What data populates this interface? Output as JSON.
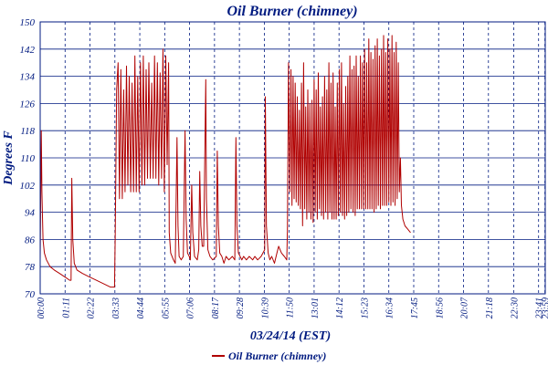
{
  "chart_data": {
    "type": "line",
    "title": "Oil Burner (chimney)",
    "xlabel": "03/24/14 (EST)",
    "ylabel": "Degrees F",
    "ylim": [
      70,
      150
    ],
    "xlim": [
      0,
      1440
    ],
    "y_ticks": [
      70,
      78,
      86,
      94,
      102,
      110,
      118,
      126,
      134,
      142,
      150
    ],
    "x_ticks": [
      {
        "label": "00:00",
        "t": 0
      },
      {
        "label": "01:11",
        "t": 71
      },
      {
        "label": "02:22",
        "t": 142
      },
      {
        "label": "03:33",
        "t": 213
      },
      {
        "label": "04:44",
        "t": 284
      },
      {
        "label": "05:55",
        "t": 355
      },
      {
        "label": "07:06",
        "t": 426
      },
      {
        "label": "08:17",
        "t": 497
      },
      {
        "label": "09:28",
        "t": 568
      },
      {
        "label": "10:39",
        "t": 639
      },
      {
        "label": "11:50",
        "t": 710
      },
      {
        "label": "13:01",
        "t": 781
      },
      {
        "label": "14:12",
        "t": 852
      },
      {
        "label": "15:23",
        "t": 923
      },
      {
        "label": "16:34",
        "t": 994
      },
      {
        "label": "17:45",
        "t": 1065
      },
      {
        "label": "18:56",
        "t": 1136
      },
      {
        "label": "20:07",
        "t": 1207
      },
      {
        "label": "21:18",
        "t": 1278
      },
      {
        "label": "22:30",
        "t": 1350
      },
      {
        "label": "23:41",
        "t": 1421
      },
      {
        "label": "23:59",
        "t": 1439
      }
    ],
    "grid": true,
    "legend_position": "bottom-center",
    "series": [
      {
        "name": "Oil Burner (chimney)",
        "color": "#b00000",
        "points": [
          [
            0,
            80
          ],
          [
            3,
            118
          ],
          [
            5,
            100
          ],
          [
            8,
            86
          ],
          [
            12,
            82
          ],
          [
            18,
            80
          ],
          [
            28,
            78
          ],
          [
            40,
            77
          ],
          [
            55,
            76
          ],
          [
            70,
            75
          ],
          [
            84,
            74
          ],
          [
            88,
            74
          ],
          [
            90,
            104
          ],
          [
            93,
            86
          ],
          [
            97,
            79
          ],
          [
            105,
            77
          ],
          [
            120,
            76
          ],
          [
            140,
            75
          ],
          [
            160,
            74
          ],
          [
            180,
            73
          ],
          [
            200,
            72
          ],
          [
            212,
            72
          ],
          [
            214,
            88
          ],
          [
            218,
            130
          ],
          [
            222,
            138
          ],
          [
            226,
            98
          ],
          [
            230,
            136
          ],
          [
            234,
            98
          ],
          [
            238,
            130
          ],
          [
            242,
            100
          ],
          [
            246,
            137
          ],
          [
            250,
            102
          ],
          [
            254,
            134
          ],
          [
            258,
            100
          ],
          [
            262,
            132
          ],
          [
            266,
            100
          ],
          [
            270,
            140
          ],
          [
            274,
            100
          ],
          [
            278,
            134
          ],
          [
            282,
            100
          ],
          [
            286,
            138
          ],
          [
            290,
            102
          ],
          [
            294,
            140
          ],
          [
            298,
            102
          ],
          [
            302,
            136
          ],
          [
            306,
            104
          ],
          [
            310,
            138
          ],
          [
            314,
            104
          ],
          [
            318,
            132
          ],
          [
            322,
            104
          ],
          [
            326,
            140
          ],
          [
            330,
            104
          ],
          [
            334,
            138
          ],
          [
            338,
            102
          ],
          [
            342,
            135
          ],
          [
            346,
            104
          ],
          [
            350,
            142
          ],
          [
            354,
            100
          ],
          [
            358,
            140
          ],
          [
            362,
            108
          ],
          [
            366,
            138
          ],
          [
            368,
            88
          ],
          [
            372,
            82
          ],
          [
            380,
            80
          ],
          [
            385,
            79
          ],
          [
            390,
            116
          ],
          [
            393,
            90
          ],
          [
            396,
            81
          ],
          [
            402,
            80
          ],
          [
            408,
            81
          ],
          [
            413,
            118
          ],
          [
            416,
            92
          ],
          [
            420,
            82
          ],
          [
            425,
            81
          ],
          [
            428,
            80
          ],
          [
            432,
            102
          ],
          [
            435,
            88
          ],
          [
            440,
            81
          ],
          [
            448,
            80
          ],
          [
            452,
            83
          ],
          [
            455,
            106
          ],
          [
            458,
            90
          ],
          [
            462,
            84
          ],
          [
            466,
            84
          ],
          [
            472,
            133
          ],
          [
            474,
            98
          ],
          [
            478,
            83
          ],
          [
            484,
            81
          ],
          [
            492,
            80
          ],
          [
            502,
            81
          ],
          [
            505,
            112
          ],
          [
            508,
            90
          ],
          [
            512,
            82
          ],
          [
            518,
            81
          ],
          [
            524,
            79
          ],
          [
            530,
            81
          ],
          [
            538,
            80
          ],
          [
            548,
            81
          ],
          [
            555,
            80
          ],
          [
            558,
            116
          ],
          [
            561,
            90
          ],
          [
            565,
            82
          ],
          [
            570,
            81
          ],
          [
            575,
            80
          ],
          [
            580,
            81
          ],
          [
            588,
            80
          ],
          [
            596,
            81
          ],
          [
            606,
            80
          ],
          [
            612,
            81
          ],
          [
            620,
            80
          ],
          [
            630,
            81
          ],
          [
            640,
            83
          ],
          [
            642,
            128
          ],
          [
            645,
            90
          ],
          [
            650,
            82
          ],
          [
            655,
            80
          ],
          [
            660,
            81
          ],
          [
            668,
            79
          ],
          [
            675,
            82
          ],
          [
            680,
            84
          ],
          [
            688,
            82
          ],
          [
            696,
            81
          ],
          [
            703,
            80
          ],
          [
            705,
            89
          ],
          [
            708,
            138
          ],
          [
            712,
            100
          ],
          [
            715,
            136
          ],
          [
            718,
            96
          ],
          [
            721,
            134
          ],
          [
            724,
            98
          ],
          [
            727,
            132
          ],
          [
            730,
            97
          ],
          [
            733,
            128
          ],
          [
            736,
            96
          ],
          [
            739,
            124
          ],
          [
            742,
            95
          ],
          [
            745,
            132
          ],
          [
            748,
            90
          ],
          [
            751,
            138
          ],
          [
            754,
            95
          ],
          [
            757,
            125
          ],
          [
            760,
            92
          ],
          [
            763,
            130
          ],
          [
            766,
            94
          ],
          [
            769,
            126
          ],
          [
            772,
            92
          ],
          [
            775,
            127
          ],
          [
            778,
            91
          ],
          [
            781,
            133
          ],
          [
            784,
            94
          ],
          [
            787,
            130
          ],
          [
            790,
            92
          ],
          [
            793,
            135
          ],
          [
            796,
            95
          ],
          [
            799,
            125
          ],
          [
            802,
            93
          ],
          [
            805,
            128
          ],
          [
            808,
            92
          ],
          [
            811,
            134
          ],
          [
            814,
            94
          ],
          [
            817,
            130
          ],
          [
            820,
            92
          ],
          [
            823,
            138
          ],
          [
            826,
            94
          ],
          [
            829,
            132
          ],
          [
            832,
            92
          ],
          [
            835,
            135
          ],
          [
            838,
            92
          ],
          [
            841,
            125
          ],
          [
            844,
            92
          ],
          [
            847,
            132
          ],
          [
            850,
            93
          ],
          [
            853,
            136
          ],
          [
            856,
            94
          ],
          [
            859,
            138
          ],
          [
            862,
            93
          ],
          [
            865,
            126
          ],
          [
            868,
            92
          ],
          [
            871,
            131
          ],
          [
            874,
            93
          ],
          [
            877,
            134
          ],
          [
            880,
            94
          ],
          [
            883,
            140
          ],
          [
            886,
            95
          ],
          [
            889,
            136
          ],
          [
            892,
            94
          ],
          [
            895,
            137
          ],
          [
            898,
            93
          ],
          [
            901,
            140
          ],
          [
            904,
            95
          ],
          [
            907,
            134
          ],
          [
            910,
            95
          ],
          [
            913,
            140
          ],
          [
            916,
            95
          ],
          [
            919,
            138
          ],
          [
            922,
            95
          ],
          [
            925,
            142
          ],
          [
            928,
            95
          ],
          [
            931,
            138
          ],
          [
            934,
            95
          ],
          [
            937,
            145
          ],
          [
            940,
            95
          ],
          [
            943,
            141
          ],
          [
            946,
            95
          ],
          [
            949,
            139
          ],
          [
            952,
            94
          ],
          [
            955,
            143
          ],
          [
            958,
            95
          ],
          [
            961,
            145
          ],
          [
            964,
            96
          ],
          [
            967,
            140
          ],
          [
            970,
            95
          ],
          [
            973,
            142
          ],
          [
            976,
            96
          ],
          [
            979,
            146
          ],
          [
            982,
            96
          ],
          [
            985,
            141
          ],
          [
            988,
            96
          ],
          [
            991,
            145
          ],
          [
            994,
            97
          ],
          [
            997,
            142
          ],
          [
            1000,
            96
          ],
          [
            1003,
            146
          ],
          [
            1006,
            97
          ],
          [
            1009,
            141
          ],
          [
            1012,
            96
          ],
          [
            1015,
            144
          ],
          [
            1018,
            98
          ],
          [
            1021,
            138
          ],
          [
            1024,
            100
          ],
          [
            1027,
            110
          ],
          [
            1030,
            96
          ],
          [
            1034,
            92
          ],
          [
            1040,
            90
          ],
          [
            1048,
            89
          ],
          [
            1056,
            88
          ]
        ]
      }
    ]
  }
}
